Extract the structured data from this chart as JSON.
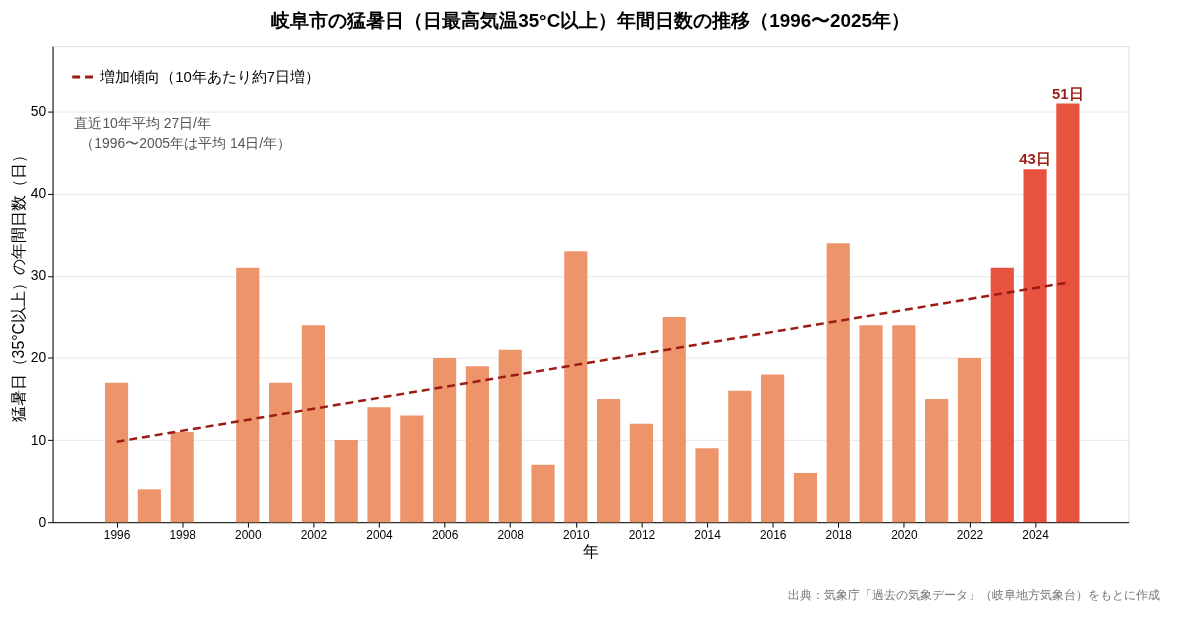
{
  "chart_data": {
    "type": "bar",
    "title": "岐阜市の猛暑日（日最高気温35°C以上）年間日数の推移（1996〜2025年）",
    "xlabel": "年",
    "ylabel": "猛暑日（35°C以上）の年間日数（日）",
    "x": [
      1996,
      1997,
      1998,
      1999,
      2000,
      2001,
      2002,
      2003,
      2004,
      2005,
      2006,
      2007,
      2008,
      2009,
      2010,
      2011,
      2012,
      2013,
      2014,
      2015,
      2016,
      2017,
      2018,
      2019,
      2020,
      2021,
      2022,
      2023,
      2024,
      2025
    ],
    "series": [
      {
        "values": [
          17,
          4,
          11,
          0,
          31,
          17,
          24,
          10,
          14,
          13,
          20,
          19,
          21,
          7,
          33,
          15,
          12,
          25,
          9,
          16,
          18,
          6,
          34,
          24,
          24,
          15,
          20,
          31,
          43,
          51
        ],
        "colors": [
          "#ee946a",
          "#ee946a",
          "#ee946a",
          "#ee946a",
          "#ee946a",
          "#ee946a",
          "#ee946a",
          "#ee946a",
          "#ee946a",
          "#ee946a",
          "#ee946a",
          "#ee946a",
          "#ee946a",
          "#ee946a",
          "#ee946a",
          "#ee946a",
          "#ee946a",
          "#ee946a",
          "#ee946a",
          "#ee946a",
          "#ee946a",
          "#ee946a",
          "#ee946a",
          "#ee946a",
          "#ee946a",
          "#ee946a",
          "#ee946a",
          "#e8533f",
          "#e8533f",
          "#e8533f"
        ],
        "value_labels": [
          null,
          null,
          null,
          null,
          null,
          null,
          null,
          null,
          null,
          null,
          null,
          null,
          null,
          null,
          null,
          null,
          null,
          null,
          null,
          null,
          null,
          null,
          null,
          null,
          null,
          null,
          null,
          null,
          "43日",
          "51日"
        ]
      },
      {
        "type": "line",
        "name": "増加傾向（10年あたり約7日増）",
        "color": "#9b1c14",
        "line_style": "dashed",
        "x": [
          1996,
          2025
        ],
        "values": [
          9.8,
          29.2
        ]
      }
    ],
    "xlim": [
      1994.2,
      2026.7
    ],
    "xticks": [
      1996,
      1998,
      2000,
      2002,
      2004,
      2006,
      2008,
      2010,
      2012,
      2014,
      2016,
      2018,
      2020,
      2022,
      2024
    ],
    "ylim": [
      0,
      58
    ],
    "yticks": [
      0,
      10,
      20,
      30,
      40,
      50
    ],
    "grid": "y",
    "legend": "top left",
    "annotations": [
      "直近10年平均 27日/年",
      "（1996〜2005年は平均 14日/年）",
      "出典：気象庁「過去の気象データ」（岐阜地方気象台）をもとに作成"
    ]
  }
}
